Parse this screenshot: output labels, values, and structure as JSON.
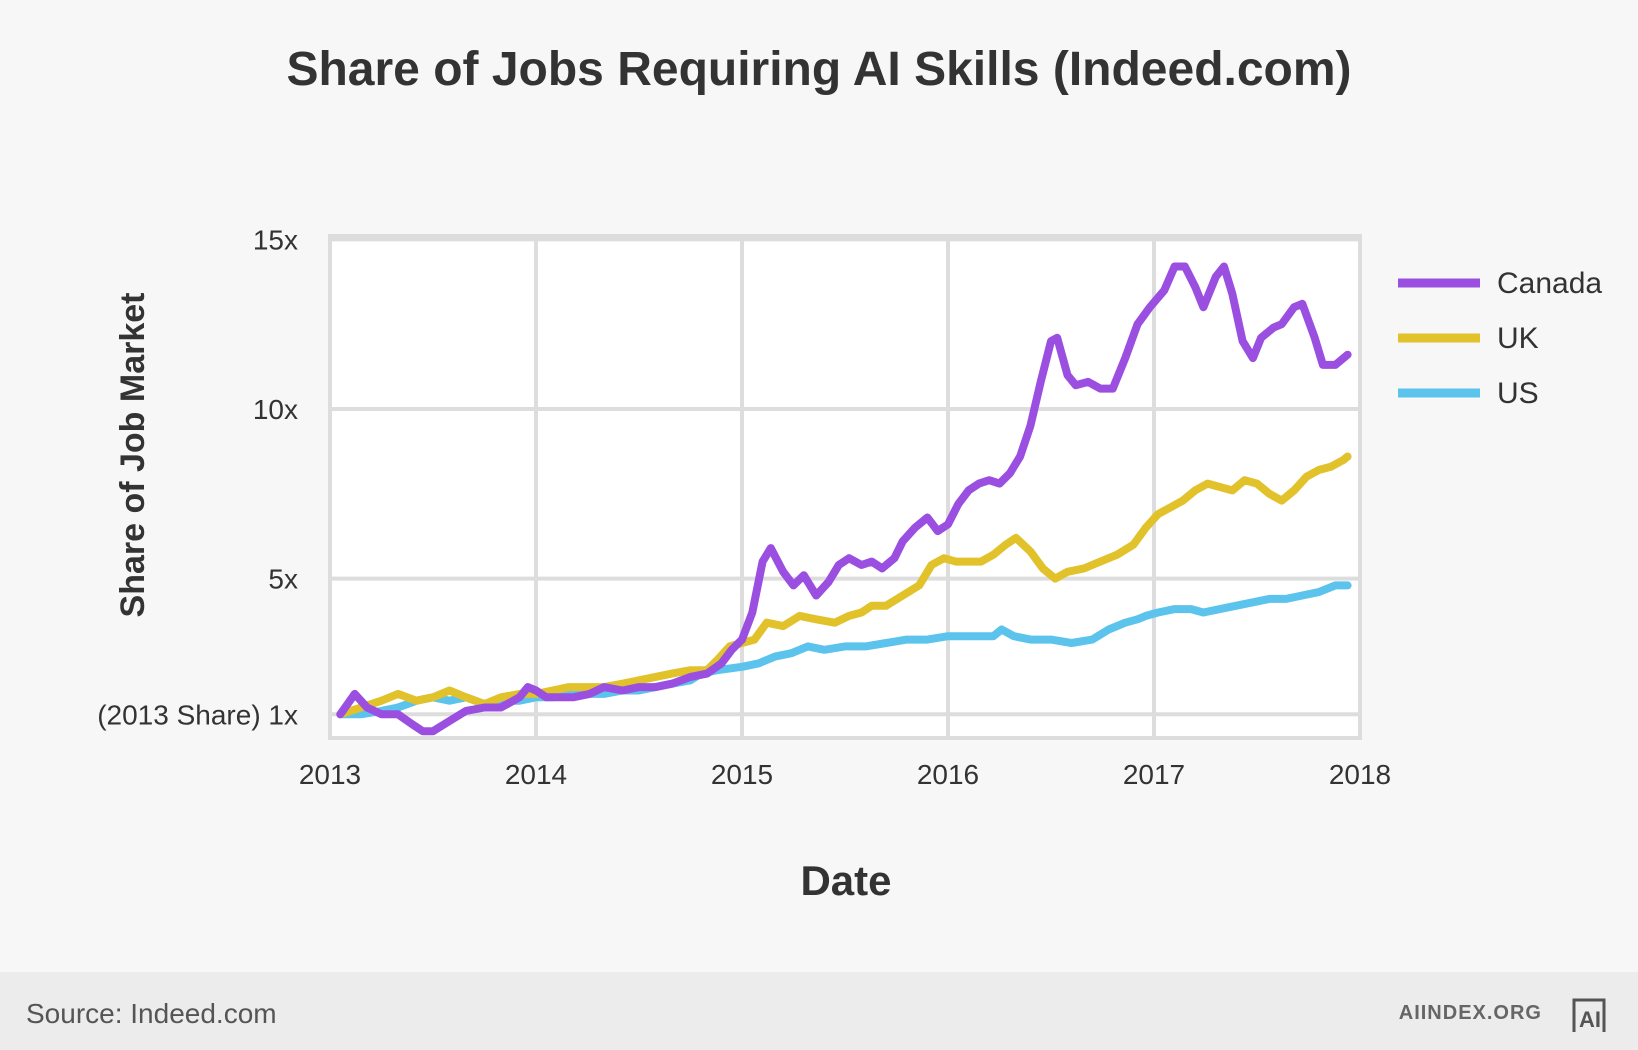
{
  "chart_data": {
    "type": "line",
    "title": "Share of Jobs Requiring AI Skills (Indeed.com)",
    "xlabel": "Date",
    "ylabel": "Share of Job Market",
    "xlim": [
      2013,
      2018
    ],
    "ylim": [
      0.3,
      15.1
    ],
    "x_ticks": [
      {
        "value": 2013,
        "label": "2013"
      },
      {
        "value": 2014,
        "label": "2014"
      },
      {
        "value": 2015,
        "label": "2015"
      },
      {
        "value": 2016,
        "label": "2016"
      },
      {
        "value": 2017,
        "label": "2017"
      },
      {
        "value": 2018,
        "label": "2018"
      }
    ],
    "y_ticks": [
      {
        "value": 1,
        "label": "(2013 Share) 1x"
      },
      {
        "value": 5,
        "label": "5x"
      },
      {
        "value": 10,
        "label": "10x"
      },
      {
        "value": 15,
        "label": "15x"
      }
    ],
    "grid": true,
    "legend_position": "right",
    "series": [
      {
        "name": "Canada",
        "color": "#9b4fe0",
        "points": [
          [
            2013.05,
            1.0
          ],
          [
            2013.12,
            1.6
          ],
          [
            2013.18,
            1.2
          ],
          [
            2013.25,
            1.0
          ],
          [
            2013.33,
            1.0
          ],
          [
            2013.4,
            0.7
          ],
          [
            2013.45,
            0.5
          ],
          [
            2013.5,
            0.5
          ],
          [
            2013.58,
            0.8
          ],
          [
            2013.66,
            1.1
          ],
          [
            2013.75,
            1.2
          ],
          [
            2013.83,
            1.2
          ],
          [
            2013.92,
            1.5
          ],
          [
            2013.96,
            1.8
          ],
          [
            2014.0,
            1.7
          ],
          [
            2014.05,
            1.5
          ],
          [
            2014.1,
            1.5
          ],
          [
            2014.18,
            1.5
          ],
          [
            2014.26,
            1.6
          ],
          [
            2014.33,
            1.8
          ],
          [
            2014.42,
            1.7
          ],
          [
            2014.5,
            1.8
          ],
          [
            2014.58,
            1.8
          ],
          [
            2014.66,
            1.9
          ],
          [
            2014.75,
            2.1
          ],
          [
            2014.83,
            2.2
          ],
          [
            2014.9,
            2.5
          ],
          [
            2014.95,
            2.9
          ],
          [
            2015.0,
            3.2
          ],
          [
            2015.05,
            4.0
          ],
          [
            2015.1,
            5.5
          ],
          [
            2015.14,
            5.9
          ],
          [
            2015.2,
            5.2
          ],
          [
            2015.25,
            4.8
          ],
          [
            2015.3,
            5.1
          ],
          [
            2015.36,
            4.5
          ],
          [
            2015.42,
            4.9
          ],
          [
            2015.47,
            5.4
          ],
          [
            2015.52,
            5.6
          ],
          [
            2015.58,
            5.4
          ],
          [
            2015.63,
            5.5
          ],
          [
            2015.68,
            5.3
          ],
          [
            2015.74,
            5.6
          ],
          [
            2015.78,
            6.1
          ],
          [
            2015.84,
            6.5
          ],
          [
            2015.9,
            6.8
          ],
          [
            2015.95,
            6.4
          ],
          [
            2016.0,
            6.6
          ],
          [
            2016.05,
            7.2
          ],
          [
            2016.1,
            7.6
          ],
          [
            2016.15,
            7.8
          ],
          [
            2016.2,
            7.9
          ],
          [
            2016.25,
            7.8
          ],
          [
            2016.3,
            8.1
          ],
          [
            2016.35,
            8.6
          ],
          [
            2016.4,
            9.5
          ],
          [
            2016.45,
            10.8
          ],
          [
            2016.5,
            12.0
          ],
          [
            2016.53,
            12.1
          ],
          [
            2016.58,
            11.0
          ],
          [
            2016.62,
            10.7
          ],
          [
            2016.68,
            10.8
          ],
          [
            2016.74,
            10.6
          ],
          [
            2016.8,
            10.6
          ],
          [
            2016.86,
            11.5
          ],
          [
            2016.92,
            12.5
          ],
          [
            2016.98,
            13.0
          ],
          [
            2017.05,
            13.5
          ],
          [
            2017.1,
            14.2
          ],
          [
            2017.15,
            14.2
          ],
          [
            2017.2,
            13.6
          ],
          [
            2017.24,
            13.0
          ],
          [
            2017.3,
            13.9
          ],
          [
            2017.34,
            14.2
          ],
          [
            2017.38,
            13.4
          ],
          [
            2017.43,
            12.0
          ],
          [
            2017.48,
            11.5
          ],
          [
            2017.52,
            12.1
          ],
          [
            2017.58,
            12.4
          ],
          [
            2017.62,
            12.5
          ],
          [
            2017.68,
            13.0
          ],
          [
            2017.72,
            13.1
          ],
          [
            2017.78,
            12.1
          ],
          [
            2017.82,
            11.3
          ],
          [
            2017.88,
            11.3
          ],
          [
            2017.94,
            11.6
          ]
        ]
      },
      {
        "name": "UK",
        "color": "#e2c22b",
        "points": [
          [
            2013.05,
            1.0
          ],
          [
            2013.15,
            1.2
          ],
          [
            2013.25,
            1.4
          ],
          [
            2013.33,
            1.6
          ],
          [
            2013.42,
            1.4
          ],
          [
            2013.5,
            1.5
          ],
          [
            2013.58,
            1.7
          ],
          [
            2013.66,
            1.5
          ],
          [
            2013.75,
            1.3
          ],
          [
            2013.83,
            1.5
          ],
          [
            2013.92,
            1.6
          ],
          [
            2014.0,
            1.6
          ],
          [
            2014.08,
            1.7
          ],
          [
            2014.16,
            1.8
          ],
          [
            2014.25,
            1.8
          ],
          [
            2014.33,
            1.8
          ],
          [
            2014.42,
            1.9
          ],
          [
            2014.5,
            2.0
          ],
          [
            2014.58,
            2.1
          ],
          [
            2014.66,
            2.2
          ],
          [
            2014.75,
            2.3
          ],
          [
            2014.83,
            2.3
          ],
          [
            2014.88,
            2.6
          ],
          [
            2014.94,
            3.0
          ],
          [
            2015.0,
            3.1
          ],
          [
            2015.06,
            3.2
          ],
          [
            2015.12,
            3.7
          ],
          [
            2015.2,
            3.6
          ],
          [
            2015.28,
            3.9
          ],
          [
            2015.36,
            3.8
          ],
          [
            2015.45,
            3.7
          ],
          [
            2015.52,
            3.9
          ],
          [
            2015.58,
            4.0
          ],
          [
            2015.63,
            4.2
          ],
          [
            2015.7,
            4.2
          ],
          [
            2015.78,
            4.5
          ],
          [
            2015.86,
            4.8
          ],
          [
            2015.92,
            5.4
          ],
          [
            2015.98,
            5.6
          ],
          [
            2016.04,
            5.5
          ],
          [
            2016.1,
            5.5
          ],
          [
            2016.16,
            5.5
          ],
          [
            2016.22,
            5.7
          ],
          [
            2016.28,
            6.0
          ],
          [
            2016.33,
            6.2
          ],
          [
            2016.4,
            5.8
          ],
          [
            2016.46,
            5.3
          ],
          [
            2016.52,
            5.0
          ],
          [
            2016.58,
            5.2
          ],
          [
            2016.66,
            5.3
          ],
          [
            2016.74,
            5.5
          ],
          [
            2016.82,
            5.7
          ],
          [
            2016.9,
            6.0
          ],
          [
            2016.96,
            6.5
          ],
          [
            2017.02,
            6.9
          ],
          [
            2017.08,
            7.1
          ],
          [
            2017.14,
            7.3
          ],
          [
            2017.2,
            7.6
          ],
          [
            2017.26,
            7.8
          ],
          [
            2017.32,
            7.7
          ],
          [
            2017.38,
            7.6
          ],
          [
            2017.44,
            7.9
          ],
          [
            2017.5,
            7.8
          ],
          [
            2017.56,
            7.5
          ],
          [
            2017.62,
            7.3
          ],
          [
            2017.68,
            7.6
          ],
          [
            2017.74,
            8.0
          ],
          [
            2017.8,
            8.2
          ],
          [
            2017.86,
            8.3
          ],
          [
            2017.92,
            8.5
          ],
          [
            2017.94,
            8.6
          ]
        ]
      },
      {
        "name": "US",
        "color": "#5bc3ec",
        "points": [
          [
            2013.05,
            1.0
          ],
          [
            2013.15,
            1.0
          ],
          [
            2013.25,
            1.1
          ],
          [
            2013.33,
            1.2
          ],
          [
            2013.42,
            1.4
          ],
          [
            2013.5,
            1.5
          ],
          [
            2013.58,
            1.4
          ],
          [
            2013.66,
            1.5
          ],
          [
            2013.75,
            1.3
          ],
          [
            2013.83,
            1.4
          ],
          [
            2013.92,
            1.4
          ],
          [
            2014.0,
            1.5
          ],
          [
            2014.08,
            1.5
          ],
          [
            2014.16,
            1.6
          ],
          [
            2014.25,
            1.6
          ],
          [
            2014.33,
            1.6
          ],
          [
            2014.42,
            1.7
          ],
          [
            2014.5,
            1.7
          ],
          [
            2014.58,
            1.8
          ],
          [
            2014.66,
            1.9
          ],
          [
            2014.75,
            2.0
          ],
          [
            2014.8,
            2.2
          ],
          [
            2014.88,
            2.3
          ],
          [
            2015.0,
            2.4
          ],
          [
            2015.08,
            2.5
          ],
          [
            2015.16,
            2.7
          ],
          [
            2015.24,
            2.8
          ],
          [
            2015.32,
            3.0
          ],
          [
            2015.4,
            2.9
          ],
          [
            2015.5,
            3.0
          ],
          [
            2015.6,
            3.0
          ],
          [
            2015.7,
            3.1
          ],
          [
            2015.8,
            3.2
          ],
          [
            2015.9,
            3.2
          ],
          [
            2016.0,
            3.3
          ],
          [
            2016.1,
            3.3
          ],
          [
            2016.18,
            3.3
          ],
          [
            2016.22,
            3.3
          ],
          [
            2016.26,
            3.5
          ],
          [
            2016.32,
            3.3
          ],
          [
            2016.4,
            3.2
          ],
          [
            2016.5,
            3.2
          ],
          [
            2016.6,
            3.1
          ],
          [
            2016.7,
            3.2
          ],
          [
            2016.78,
            3.5
          ],
          [
            2016.86,
            3.7
          ],
          [
            2016.92,
            3.8
          ],
          [
            2016.96,
            3.9
          ],
          [
            2017.02,
            4.0
          ],
          [
            2017.1,
            4.1
          ],
          [
            2017.18,
            4.1
          ],
          [
            2017.24,
            4.0
          ],
          [
            2017.32,
            4.1
          ],
          [
            2017.4,
            4.2
          ],
          [
            2017.48,
            4.3
          ],
          [
            2017.56,
            4.4
          ],
          [
            2017.64,
            4.4
          ],
          [
            2017.72,
            4.5
          ],
          [
            2017.8,
            4.6
          ],
          [
            2017.88,
            4.8
          ],
          [
            2017.94,
            4.8
          ]
        ]
      }
    ]
  },
  "footer": {
    "source": "Source: Indeed.com",
    "brand": "AIINDEX.ORG",
    "logo_icon": "ai-index-logo-icon",
    "logo_text": "AI"
  }
}
